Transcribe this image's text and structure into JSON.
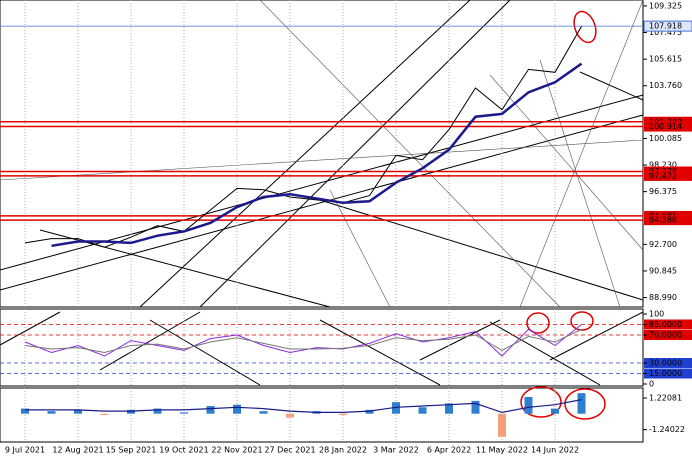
{
  "chart_data": [
    {
      "type": "line",
      "ylim": [
        88.33,
        109.74
      ],
      "yticks": [
        109.325,
        107.475,
        105.615,
        {
          "value": 103.76,
          "label": "103.760"
        },
        100.085,
        {
          "value": 98.23,
          "label": "98.230"
        },
        96.375,
        {
          "value": 92.7,
          "label": "92.700"
        },
        90.845,
        {
          "value": 88.99,
          "label": "88.990"
        }
      ],
      "grid": true,
      "series": [
        {
          "color": "#000000",
          "values": [
            92.8,
            93.1,
            93.1,
            92.5,
            93.2,
            94.0,
            93.6,
            95.1,
            96.6,
            96.5,
            96.0,
            95.8,
            95.6,
            96.1,
            98.9,
            98.6,
            100.7,
            103.6,
            102.1,
            104.9,
            104.7,
            107.9
          ]
        },
        {
          "color": "#1a1a8c",
          "values": [
            null,
            92.6,
            92.9,
            92.9,
            92.8,
            93.3,
            93.6,
            94.2,
            95.3,
            96.0,
            96.2,
            95.9,
            95.6,
            95.7,
            97.0,
            98.0,
            99.3,
            101.6,
            101.8,
            103.3,
            104.0,
            105.3
          ]
        }
      ],
      "levels": [
        101.249,
        100.914,
        97.778,
        97.472,
        94.681,
        94.388
      ],
      "level_color": "#e00000",
      "last_price": 107.918,
      "last_price_color": "#4a6fd6"
    },
    {
      "type": "line",
      "ylim": [
        0,
        100
      ],
      "yticks": [
        100,
        {
          "value": 85,
          "label": "85.0000"
        },
        {
          "value": 70,
          "label": "70.0000"
        },
        {
          "value": 30,
          "label": "30.0000"
        },
        {
          "value": 15,
          "label": "15.0000"
        },
        0
      ],
      "levels": [
        85,
        70,
        30,
        15
      ],
      "level_colors": [
        "#e00000",
        "#e00000",
        "#2040d0",
        "#2040d0"
      ],
      "series": [
        {
          "color": "#8a2be2",
          "values": [
            60,
            45,
            55,
            40,
            62,
            55,
            48,
            65,
            70,
            55,
            45,
            52,
            50,
            58,
            72,
            60,
            66,
            75,
            40,
            78,
            55,
            85
          ]
        },
        {
          "color": "#777777",
          "values": [
            55,
            50,
            52,
            45,
            55,
            57,
            50,
            60,
            66,
            58,
            50,
            50,
            51,
            55,
            66,
            62,
            64,
            70,
            48,
            68,
            60,
            78
          ]
        }
      ]
    },
    {
      "type": "bar",
      "ylim": [
        -2.2,
        2.0
      ],
      "yticks": [
        1.22081,
        -1.24022
      ],
      "color": "#2f7fd0",
      "negative_color": "#f4a07a",
      "values": [
        0.4,
        0.2,
        0.3,
        -0.1,
        0.3,
        0.4,
        0.1,
        0.6,
        0.7,
        0.2,
        -0.3,
        0.2,
        -0.1,
        0.3,
        0.9,
        0.5,
        0.8,
        1.0,
        -1.8,
        1.3,
        0.4,
        1.6
      ],
      "line": {
        "color": "#1a1a8c",
        "values": [
          0.3,
          0.3,
          0.3,
          0.2,
          0.2,
          0.3,
          0.3,
          0.4,
          0.5,
          0.4,
          0.2,
          0.1,
          0.1,
          0.2,
          0.5,
          0.6,
          0.7,
          0.8,
          0.1,
          0.5,
          0.7,
          1.1
        ]
      },
      "categories": [
        "9 Jul 2021",
        null,
        "12 Aug 2021",
        null,
        "15 Sep 2021",
        null,
        "19 Oct 2021",
        null,
        "22 Nov 2021",
        null,
        "27 Dec 2021",
        null,
        "28 Jan 2022",
        null,
        "3 Mar 2022",
        null,
        "6 Apr 2022",
        null,
        "11 May 2022",
        null,
        "14 Jun 2022",
        null
      ]
    }
  ]
}
